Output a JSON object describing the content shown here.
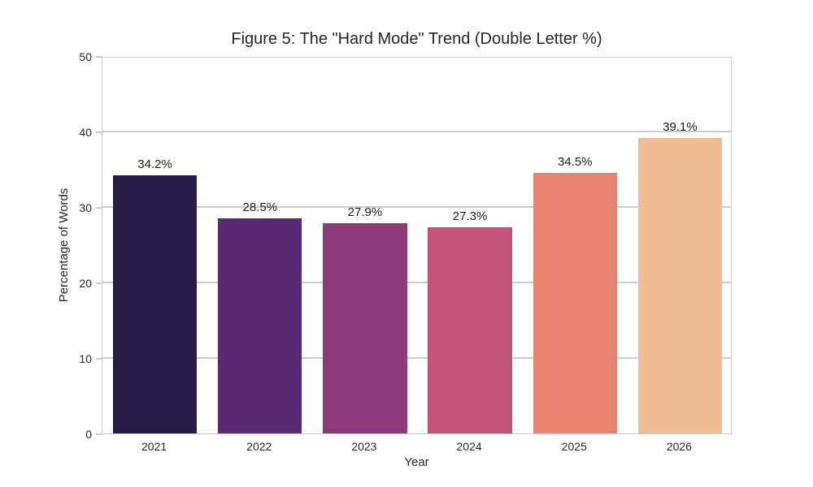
{
  "figure": {
    "title": "Figure 5: The \"Hard Mode\" Trend (Double Letter %)"
  },
  "chart_data": {
    "type": "bar",
    "title": "Figure 5: The \"Hard Mode\" Trend (Double Letter %)",
    "xlabel": "Year",
    "ylabel": "Percentage of Words",
    "categories": [
      "2021",
      "2022",
      "2023",
      "2024",
      "2025",
      "2026"
    ],
    "values": [
      34.2,
      28.5,
      27.9,
      27.3,
      34.5,
      39.1
    ],
    "value_labels": [
      "34.2%",
      "28.5%",
      "27.9%",
      "27.3%",
      "34.5%",
      "39.1%"
    ],
    "bar_colors": [
      "#271b4a",
      "#5a2a74",
      "#8c3a7a",
      "#c25577",
      "#e6846f",
      "#f0bc92"
    ],
    "ylim": [
      0,
      50
    ],
    "yticks": [
      0,
      10,
      20,
      30,
      40,
      50
    ],
    "grid": "horizontal",
    "legend": "none",
    "colors": {
      "grid": "#cccccc",
      "spine": "#cccccc",
      "text": "#262626",
      "value_label_text": "#1a1a1a",
      "background": "#ffffff"
    }
  }
}
